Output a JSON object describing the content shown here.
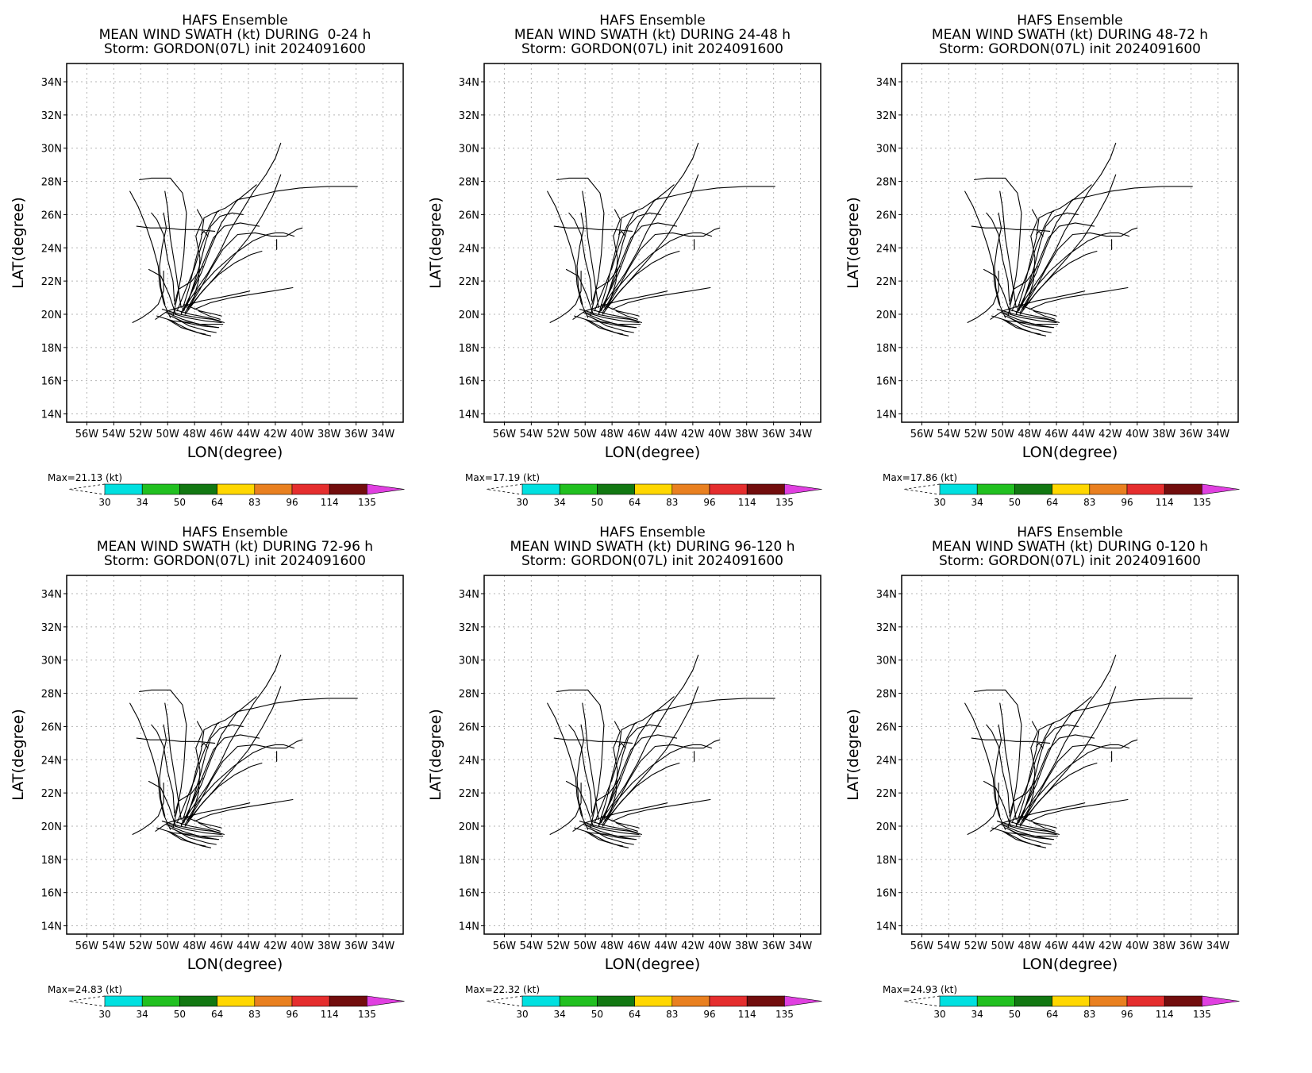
{
  "header_line1": "HAFS Ensemble",
  "storm_line": "Storm: GORDON(07L) init 2024091600",
  "xlabel": "LON(degree)",
  "ylabel": "LAT(degree)",
  "panels": [
    {
      "swath_title": "MEAN WIND SWATH (kt) DURING  0-24 h",
      "max_label": "Max=21.13 (kt)"
    },
    {
      "swath_title": "MEAN WIND SWATH (kt) DURING 24-48 h",
      "max_label": "Max=17.19 (kt)"
    },
    {
      "swath_title": "MEAN WIND SWATH (kt) DURING 48-72 h",
      "max_label": "Max=17.86 (kt)"
    },
    {
      "swath_title": "MEAN WIND SWATH (kt) DURING 72-96 h",
      "max_label": "Max=24.83 (kt)"
    },
    {
      "swath_title": "MEAN WIND SWATH (kt) DURING 96-120 h",
      "max_label": "Max=22.32 (kt)"
    },
    {
      "swath_title": "MEAN WIND SWATH (kt) DURING 0-120 h",
      "max_label": "Max=24.93 (kt)"
    }
  ],
  "chart_data": {
    "type": "line",
    "x_ticks": [
      "56W",
      "54W",
      "52W",
      "50W",
      "48W",
      "46W",
      "44W",
      "42W",
      "40W",
      "38W",
      "36W",
      "34W"
    ],
    "x_tick_values": [
      -56,
      -54,
      -52,
      -50,
      -48,
      -46,
      -44,
      -42,
      -40,
      -38,
      -36,
      -34
    ],
    "y_ticks": [
      "14N",
      "16N",
      "18N",
      "20N",
      "22N",
      "24N",
      "26N",
      "28N",
      "30N",
      "32N",
      "34N"
    ],
    "y_tick_values": [
      14,
      16,
      18,
      20,
      22,
      24,
      26,
      28,
      30,
      32,
      34
    ],
    "xlim": [
      -57.5,
      -32.5
    ],
    "ylim": [
      13.5,
      35.1
    ],
    "grid": true,
    "colorbar": {
      "levels": [
        "30",
        "34",
        "50",
        "64",
        "83",
        "96",
        "114",
        "135"
      ],
      "colors": [
        "#00e0e0",
        "#21c020",
        "#127812",
        "#ffd700",
        "#e98020",
        "#e52e2e",
        "#720d0d",
        "#e040e0"
      ]
    },
    "series": [
      {
        "points": [
          [
            -49.8,
            19.8
          ],
          [
            -50.3,
            20.7
          ],
          [
            -50.6,
            21.8
          ],
          [
            -50.7,
            22.9
          ],
          [
            -51.1,
            24.1
          ],
          [
            -51.6,
            25.3
          ],
          [
            -52.2,
            26.5
          ],
          [
            -52.8,
            27.4
          ]
        ]
      },
      {
        "points": [
          [
            -49.6,
            19.9
          ],
          [
            -49.3,
            21.0
          ],
          [
            -49.0,
            22.3
          ],
          [
            -48.8,
            23.6
          ],
          [
            -48.7,
            24.8
          ],
          [
            -48.6,
            26.1
          ],
          [
            -48.9,
            27.3
          ],
          [
            -49.8,
            28.2
          ],
          [
            -51.2,
            28.2
          ],
          [
            -52.1,
            28.1
          ]
        ]
      },
      {
        "points": [
          [
            -49.3,
            20.2
          ],
          [
            -48.6,
            21.6
          ],
          [
            -48.0,
            22.8
          ],
          [
            -47.5,
            24.1
          ],
          [
            -46.9,
            25.3
          ],
          [
            -46.3,
            26.2
          ],
          [
            -45.7,
            26.4
          ],
          [
            -44.8,
            26.9
          ],
          [
            -43.6,
            27.1
          ],
          [
            -42.0,
            27.4
          ],
          [
            -40.2,
            27.6
          ],
          [
            -38.1,
            27.7
          ],
          [
            -35.9,
            27.7
          ]
        ]
      },
      {
        "points": [
          [
            -49.0,
            20.1
          ],
          [
            -48.0,
            21.3
          ],
          [
            -47.0,
            22.5
          ],
          [
            -46.1,
            23.8
          ],
          [
            -45.4,
            25.0
          ],
          [
            -44.5,
            26.2
          ],
          [
            -43.6,
            27.4
          ],
          [
            -42.7,
            28.4
          ],
          [
            -42.0,
            29.4
          ],
          [
            -41.6,
            30.3
          ]
        ]
      },
      {
        "points": [
          [
            -48.7,
            20.0
          ],
          [
            -47.6,
            21.2
          ],
          [
            -46.4,
            22.3
          ],
          [
            -45.2,
            23.4
          ],
          [
            -44.0,
            24.6
          ],
          [
            -43.0,
            25.9
          ],
          [
            -42.2,
            27.1
          ],
          [
            -41.6,
            28.4
          ]
        ]
      },
      {
        "points": [
          [
            -48.5,
            20.3
          ],
          [
            -47.6,
            21.5
          ],
          [
            -46.8,
            22.7
          ],
          [
            -45.9,
            23.9
          ],
          [
            -44.8,
            24.8
          ],
          [
            -43.5,
            24.9
          ],
          [
            -42.3,
            24.7
          ],
          [
            -41.2,
            24.7
          ],
          [
            -40.4,
            25.1
          ],
          [
            -40.0,
            25.2
          ]
        ]
      },
      {
        "points": [
          [
            -48.6,
            20.4
          ],
          [
            -48.1,
            21.7
          ],
          [
            -47.6,
            23.0
          ],
          [
            -47.2,
            24.3
          ],
          [
            -46.8,
            25.3
          ],
          [
            -46.1,
            25.9
          ],
          [
            -45.2,
            26.1
          ],
          [
            -44.4,
            26.0
          ]
        ]
      },
      {
        "points": [
          [
            -48.9,
            20.3
          ],
          [
            -48.4,
            21.6
          ],
          [
            -48.0,
            23.0
          ],
          [
            -47.5,
            24.6
          ],
          [
            -47.3,
            25.8
          ],
          [
            -46.6,
            26.1
          ],
          [
            -46.2,
            26.2
          ]
        ]
      },
      {
        "points": [
          [
            -49.5,
            20.8
          ],
          [
            -49.6,
            22.0
          ],
          [
            -50.0,
            23.3
          ],
          [
            -50.3,
            24.8
          ],
          [
            -50.8,
            25.7
          ],
          [
            -51.2,
            26.1
          ]
        ]
      },
      {
        "points": [
          [
            -50.2,
            20.6
          ],
          [
            -50.5,
            21.6
          ],
          [
            -50.6,
            22.9
          ],
          [
            -50.4,
            24.1
          ],
          [
            -50.1,
            25.2
          ],
          [
            -50.3,
            26.1
          ]
        ]
      },
      {
        "points": [
          [
            -48.3,
            20.5
          ],
          [
            -47.3,
            21.5
          ],
          [
            -46.2,
            22.4
          ],
          [
            -45.0,
            23.1
          ],
          [
            -43.8,
            23.6
          ],
          [
            -43.0,
            23.8
          ]
        ]
      },
      {
        "points": [
          [
            -48.0,
            20.3
          ],
          [
            -46.8,
            20.7
          ],
          [
            -45.3,
            21.0
          ],
          [
            -43.8,
            21.2
          ],
          [
            -42.2,
            21.4
          ],
          [
            -40.7,
            21.6
          ]
        ]
      },
      {
        "points": [
          [
            -50.9,
            19.7
          ],
          [
            -50.0,
            20.2
          ],
          [
            -48.8,
            20.5
          ],
          [
            -47.5,
            20.8
          ],
          [
            -46.2,
            21.0
          ],
          [
            -45.0,
            21.2
          ],
          [
            -43.9,
            21.4
          ]
        ]
      },
      {
        "points": [
          [
            -52.3,
            25.3
          ],
          [
            -51.3,
            25.2
          ],
          [
            -50.2,
            25.2
          ],
          [
            -49.0,
            25.1
          ],
          [
            -47.8,
            25.1
          ],
          [
            -46.5,
            25.0
          ]
        ]
      },
      {
        "points": [
          [
            -49.4,
            20.0
          ],
          [
            -49.9,
            21.2
          ],
          [
            -50.5,
            22.3
          ],
          [
            -51.4,
            22.7
          ]
        ]
      },
      {
        "points": [
          [
            -48.8,
            20.2
          ],
          [
            -48.0,
            21.8
          ],
          [
            -47.2,
            23.4
          ],
          [
            -46.6,
            24.6
          ],
          [
            -45.8,
            25.3
          ],
          [
            -44.6,
            25.5
          ],
          [
            -43.2,
            25.3
          ]
        ]
      },
      {
        "points": [
          [
            -48.2,
            20.6
          ],
          [
            -47.7,
            22.0
          ],
          [
            -47.6,
            23.4
          ],
          [
            -47.9,
            24.7
          ],
          [
            -47.4,
            25.7
          ],
          [
            -47.8,
            26.3
          ]
        ]
      },
      {
        "points": [
          [
            -48.7,
            20.1
          ],
          [
            -47.8,
            21.4
          ],
          [
            -46.5,
            22.6
          ],
          [
            -45.1,
            23.6
          ],
          [
            -43.7,
            24.4
          ],
          [
            -42.6,
            24.8
          ],
          [
            -42.0,
            24.9
          ],
          [
            -41.4,
            24.9
          ],
          [
            -40.6,
            24.7
          ]
        ]
      },
      {
        "points": [
          [
            -49.0,
            20.0
          ],
          [
            -48.4,
            21.0
          ],
          [
            -47.5,
            22.5
          ],
          [
            -46.8,
            24.0
          ],
          [
            -46.0,
            25.5
          ],
          [
            -44.9,
            26.8
          ],
          [
            -43.4,
            27.8
          ]
        ]
      },
      {
        "points": [
          [
            -52.6,
            19.5
          ],
          [
            -51.9,
            19.8
          ],
          [
            -51.2,
            20.2
          ],
          [
            -50.7,
            20.6
          ],
          [
            -50.3,
            21.4
          ],
          [
            -50.3,
            22.6
          ]
        ]
      },
      {
        "points": [
          [
            -49.5,
            20.6
          ],
          [
            -49.2,
            21.5
          ],
          [
            -48.2,
            22.0
          ],
          [
            -47.4,
            22.9
          ]
        ]
      },
      {
        "points": [
          [
            -49.0,
            20.4
          ],
          [
            -49.4,
            22.6
          ],
          [
            -49.8,
            24.6
          ],
          [
            -50.0,
            26.4
          ],
          [
            -50.2,
            27.4
          ]
        ]
      },
      {
        "points": [
          [
            -49.8,
            19.9
          ],
          [
            -48.7,
            19.5
          ],
          [
            -47.5,
            19.3
          ],
          [
            -46.2,
            19.2
          ]
        ]
      },
      {
        "points": [
          [
            -50.1,
            20.1
          ],
          [
            -48.9,
            19.7
          ],
          [
            -47.7,
            19.4
          ],
          [
            -46.4,
            19.4
          ],
          [
            -45.9,
            19.4
          ]
        ]
      },
      {
        "points": [
          [
            -49.6,
            20.3
          ],
          [
            -48.3,
            20.0
          ],
          [
            -47.0,
            19.8
          ],
          [
            -46.1,
            19.6
          ]
        ]
      },
      {
        "points": [
          [
            -49.5,
            19.8
          ],
          [
            -48.4,
            19.3
          ],
          [
            -47.1,
            19.0
          ],
          [
            -46.4,
            18.9
          ]
        ]
      },
      {
        "points": [
          [
            -50.0,
            19.7
          ],
          [
            -49.0,
            19.2
          ],
          [
            -47.8,
            18.9
          ],
          [
            -47.2,
            18.8
          ]
        ]
      },
      {
        "points": [
          [
            -49.9,
            20.1
          ],
          [
            -48.6,
            19.8
          ],
          [
            -47.2,
            19.6
          ],
          [
            -46.0,
            19.5
          ]
        ]
      },
      {
        "points": [
          [
            -50.4,
            20.3
          ],
          [
            -49.1,
            20.0
          ],
          [
            -47.8,
            19.8
          ],
          [
            -46.7,
            19.7
          ],
          [
            -45.8,
            19.5
          ]
        ]
      },
      {
        "points": [
          [
            -49.7,
            19.6
          ],
          [
            -48.5,
            19.1
          ],
          [
            -47.4,
            18.8
          ],
          [
            -46.8,
            18.7
          ]
        ]
      },
      {
        "points": [
          [
            -48.8,
            20.6
          ],
          [
            -47.6,
            20.2
          ],
          [
            -46.5,
            20.0
          ],
          [
            -46.0,
            19.9
          ]
        ]
      },
      {
        "points": [
          [
            -50.8,
            19.9
          ],
          [
            -49.6,
            19.6
          ],
          [
            -48.2,
            19.5
          ],
          [
            -47.0,
            19.3
          ],
          [
            -46.3,
            19.2
          ]
        ]
      },
      {
        "points": [
          [
            -47.7,
            20.2
          ],
          [
            -46.9,
            19.9
          ],
          [
            -46.1,
            19.7
          ]
        ]
      },
      {
        "points": [
          [
            -41.9,
            24.5
          ],
          [
            -41.9,
            23.9
          ]
        ]
      },
      {
        "points": [
          [
            -47.0,
            24.7
          ],
          [
            -47.3,
            25.0
          ],
          [
            -47.5,
            24.8
          ]
        ]
      }
    ]
  }
}
